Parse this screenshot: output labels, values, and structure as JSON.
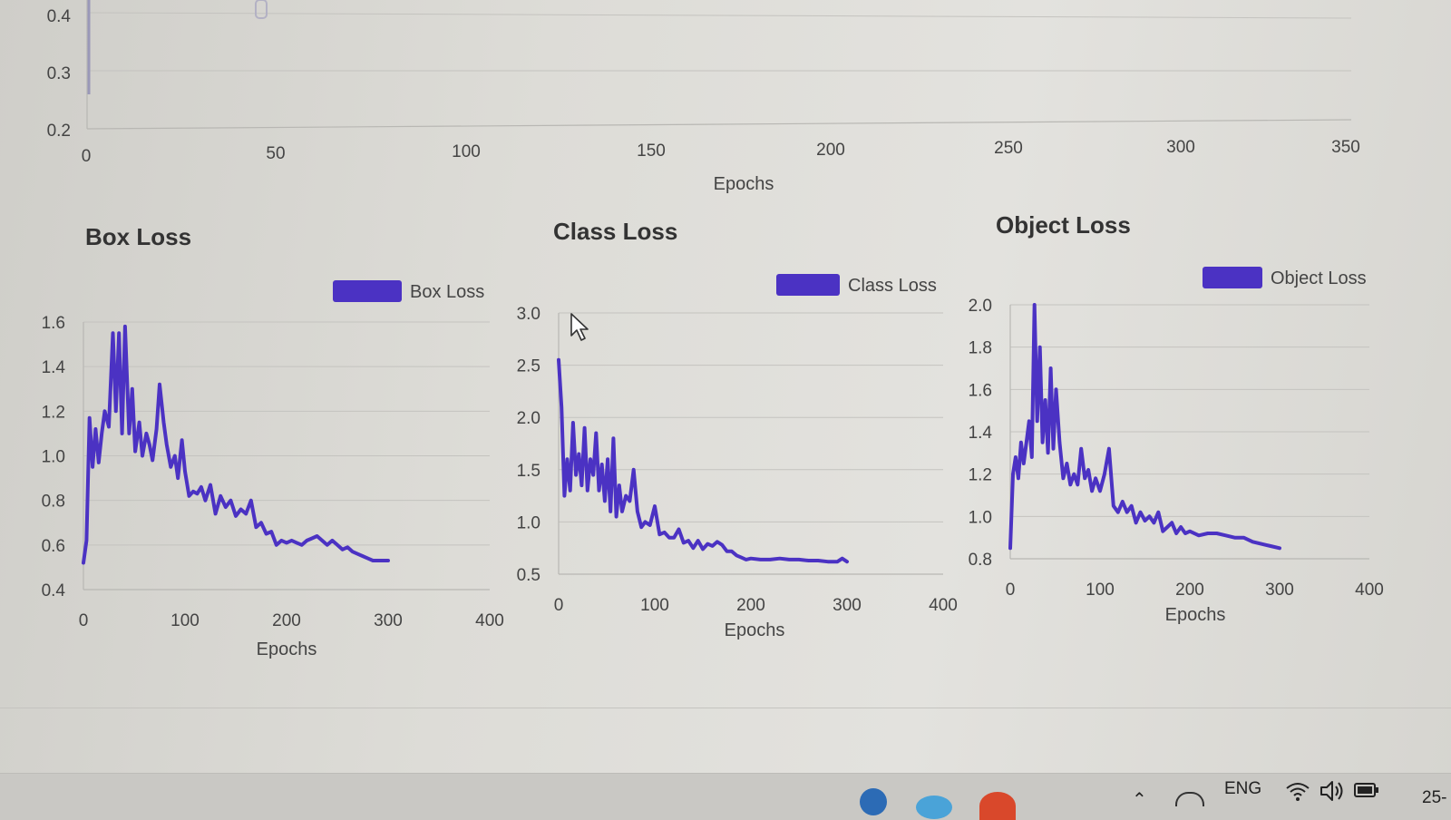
{
  "top_chart": {
    "y_ticks": [
      "0.4",
      "0.3",
      "0.2"
    ],
    "x_ticks": [
      "0",
      "50",
      "100",
      "150",
      "200",
      "250",
      "300",
      "350"
    ],
    "xlabel": "Epochs"
  },
  "chart_data": [
    {
      "type": "line",
      "title": "Box Loss",
      "legend": "Box Loss",
      "color": "#4b32c3",
      "xlabel": "Epochs",
      "ylabel": "",
      "xlim": [
        0,
        400
      ],
      "ylim": [
        0.4,
        1.6
      ],
      "x_ticks": [
        "0",
        "100",
        "200",
        "300",
        "400"
      ],
      "y_ticks": [
        "1.6",
        "1.4",
        "1.2",
        "1.0",
        "0.8",
        "0.6",
        "0.4"
      ],
      "series": [
        {
          "x": [
            0,
            3,
            6,
            9,
            12,
            15,
            18,
            21,
            25,
            29,
            32,
            35,
            38,
            41,
            45,
            48,
            51,
            55,
            58,
            62,
            65,
            68,
            72,
            75,
            79,
            82,
            86,
            90,
            93,
            97,
            100,
            104,
            108,
            112,
            116,
            120,
            125,
            130,
            135,
            140,
            145,
            150,
            155,
            160,
            165,
            170,
            175,
            180,
            185,
            190,
            195,
            200,
            205,
            210,
            215,
            220,
            225,
            230,
            235,
            240,
            245,
            250,
            255,
            260,
            265,
            270,
            275,
            280,
            285,
            290,
            295,
            300
          ],
          "y": [
            0.52,
            0.62,
            1.17,
            0.95,
            1.12,
            0.97,
            1.1,
            1.2,
            1.13,
            1.55,
            1.2,
            1.55,
            1.1,
            1.58,
            1.1,
            1.3,
            1.02,
            1.15,
            1.0,
            1.1,
            1.05,
            0.98,
            1.12,
            1.32,
            1.15,
            1.05,
            0.95,
            1.0,
            0.9,
            1.07,
            0.93,
            0.82,
            0.84,
            0.83,
            0.86,
            0.8,
            0.87,
            0.74,
            0.82,
            0.77,
            0.8,
            0.73,
            0.76,
            0.74,
            0.8,
            0.68,
            0.7,
            0.65,
            0.66,
            0.6,
            0.62,
            0.61,
            0.62,
            0.61,
            0.6,
            0.62,
            0.63,
            0.64,
            0.62,
            0.6,
            0.62,
            0.6,
            0.58,
            0.59,
            0.57,
            0.56,
            0.55,
            0.54,
            0.53,
            0.53,
            0.53,
            0.53
          ]
        }
      ]
    },
    {
      "type": "line",
      "title": "Class Loss",
      "legend": "Class Loss",
      "color": "#4b32c3",
      "xlabel": "Epochs",
      "ylabel": "",
      "xlim": [
        0,
        400
      ],
      "ylim": [
        0.5,
        3.0
      ],
      "x_ticks": [
        "0",
        "100",
        "200",
        "300",
        "400"
      ],
      "y_ticks": [
        "3.0",
        "2.5",
        "2.0",
        "1.5",
        "1.0",
        "0.5"
      ],
      "series": [
        {
          "x": [
            0,
            3,
            6,
            9,
            12,
            15,
            18,
            21,
            24,
            27,
            30,
            33,
            36,
            39,
            42,
            45,
            48,
            51,
            54,
            57,
            60,
            63,
            66,
            70,
            74,
            78,
            82,
            86,
            90,
            95,
            100,
            105,
            110,
            115,
            120,
            125,
            130,
            135,
            140,
            145,
            150,
            155,
            160,
            165,
            170,
            175,
            180,
            185,
            190,
            195,
            200,
            210,
            220,
            230,
            240,
            250,
            260,
            270,
            280,
            290,
            295,
            300
          ],
          "y": [
            2.55,
            2.1,
            1.25,
            1.6,
            1.3,
            1.95,
            1.45,
            1.65,
            1.35,
            1.9,
            1.3,
            1.6,
            1.45,
            1.85,
            1.3,
            1.55,
            1.2,
            1.6,
            1.1,
            1.8,
            1.05,
            1.35,
            1.1,
            1.25,
            1.2,
            1.5,
            1.1,
            0.95,
            1.0,
            0.97,
            1.15,
            0.88,
            0.9,
            0.85,
            0.85,
            0.93,
            0.8,
            0.82,
            0.75,
            0.82,
            0.74,
            0.79,
            0.77,
            0.81,
            0.78,
            0.72,
            0.72,
            0.68,
            0.66,
            0.64,
            0.65,
            0.64,
            0.64,
            0.65,
            0.64,
            0.64,
            0.63,
            0.63,
            0.62,
            0.62,
            0.65,
            0.62
          ]
        }
      ]
    },
    {
      "type": "line",
      "title": "Object Loss",
      "legend": "Object Loss",
      "color": "#4b32c3",
      "xlabel": "Epochs",
      "ylabel": "",
      "xlim": [
        0,
        400
      ],
      "ylim": [
        0.8,
        2.0
      ],
      "x_ticks": [
        "0",
        "100",
        "200",
        "300",
        "400"
      ],
      "y_ticks": [
        "2.0",
        "1.8",
        "1.6",
        "1.4",
        "1.2",
        "1.0",
        "0.8"
      ],
      "series": [
        {
          "x": [
            0,
            3,
            6,
            9,
            12,
            15,
            18,
            21,
            24,
            27,
            30,
            33,
            36,
            39,
            42,
            45,
            48,
            51,
            55,
            59,
            63,
            67,
            71,
            75,
            79,
            83,
            87,
            91,
            95,
            100,
            105,
            110,
            115,
            120,
            125,
            130,
            135,
            140,
            145,
            150,
            155,
            160,
            165,
            170,
            175,
            180,
            185,
            190,
            195,
            200,
            210,
            220,
            230,
            240,
            250,
            260,
            270,
            280,
            290,
            300
          ],
          "y": [
            0.85,
            1.2,
            1.28,
            1.18,
            1.35,
            1.25,
            1.35,
            1.45,
            1.28,
            2.0,
            1.45,
            1.8,
            1.35,
            1.55,
            1.3,
            1.7,
            1.32,
            1.6,
            1.35,
            1.18,
            1.25,
            1.15,
            1.2,
            1.15,
            1.32,
            1.18,
            1.22,
            1.12,
            1.18,
            1.12,
            1.2,
            1.32,
            1.05,
            1.02,
            1.07,
            1.02,
            1.05,
            0.97,
            1.02,
            0.98,
            1.0,
            0.97,
            1.02,
            0.93,
            0.95,
            0.97,
            0.92,
            0.95,
            0.92,
            0.93,
            0.91,
            0.92,
            0.92,
            0.91,
            0.9,
            0.9,
            0.88,
            0.87,
            0.86,
            0.85
          ]
        }
      ]
    }
  ],
  "taskbar": {
    "language": "ENG",
    "clock_fragment": "25-",
    "wifi_icon": "wifi-icon",
    "volume_icon": "volume-icon",
    "battery_icon": "battery-icon"
  }
}
